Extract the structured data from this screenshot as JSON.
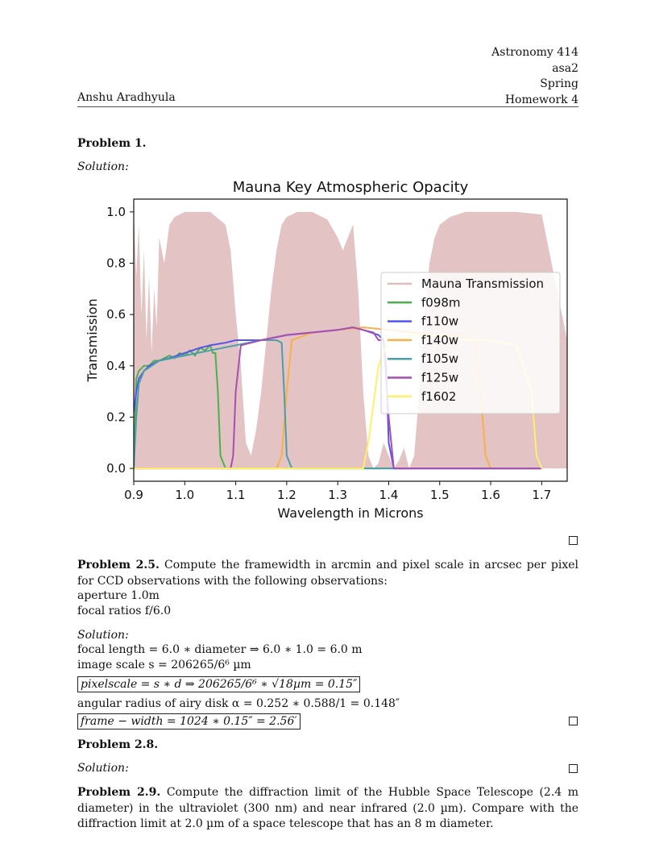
{
  "header": {
    "course": "Astronomy 414",
    "netid": "asa2",
    "term": "Spring",
    "author": "Anshu Aradhyula",
    "assignment": "Homework 4"
  },
  "problem1": {
    "title": "Problem 1.",
    "solution_label": "Solution:"
  },
  "chart_data": {
    "type": "line",
    "title": "Mauna Key Atmospheric Opacity",
    "xlabel": "Wavelength in Microns",
    "ylabel": "Transmission",
    "xlim": [
      0.9,
      1.75
    ],
    "ylim": [
      -0.05,
      1.05
    ],
    "xticks": [
      "0.9",
      "1.0",
      "1.1",
      "1.2",
      "1.3",
      "1.4",
      "1.5",
      "1.6",
      "1.7"
    ],
    "yticks": [
      "0.0",
      "0.2",
      "0.4",
      "0.6",
      "0.8",
      "1.0"
    ],
    "legend_position": "center-right",
    "series": [
      {
        "name": "Mauna Transmission",
        "color": "#e0bcbc",
        "x": [
          0.9,
          0.905,
          0.91,
          0.915,
          0.92,
          0.925,
          0.93,
          0.935,
          0.94,
          0.945,
          0.95,
          0.96,
          0.97,
          0.98,
          1.0,
          1.05,
          1.08,
          1.09,
          1.1,
          1.11,
          1.12,
          1.13,
          1.14,
          1.15,
          1.16,
          1.17,
          1.18,
          1.19,
          1.2,
          1.22,
          1.25,
          1.28,
          1.3,
          1.31,
          1.32,
          1.33,
          1.34,
          1.35,
          1.36,
          1.37,
          1.38,
          1.39,
          1.4,
          1.41,
          1.42,
          1.43,
          1.44,
          1.45,
          1.46,
          1.47,
          1.48,
          1.49,
          1.5,
          1.52,
          1.55,
          1.6,
          1.65,
          1.7,
          1.75
        ],
        "y": [
          1.0,
          0.75,
          0.95,
          0.6,
          0.85,
          0.5,
          0.75,
          0.45,
          0.7,
          0.55,
          0.9,
          0.8,
          0.95,
          0.98,
          1.0,
          1.0,
          0.95,
          0.85,
          0.6,
          0.4,
          0.1,
          0.05,
          0.15,
          0.3,
          0.5,
          0.7,
          0.85,
          0.95,
          0.98,
          1.0,
          1.0,
          0.97,
          0.9,
          0.85,
          0.9,
          0.95,
          0.7,
          0.3,
          0.05,
          0.0,
          0.02,
          0.1,
          0.05,
          0.0,
          0.03,
          0.08,
          0.0,
          0.05,
          0.3,
          0.6,
          0.8,
          0.9,
          0.95,
          0.98,
          1.0,
          1.0,
          1.0,
          0.99,
          0.5
        ]
      },
      {
        "name": "f098m",
        "color": "#4caf50",
        "x": [
          0.9,
          0.905,
          0.91,
          0.92,
          0.93,
          0.94,
          0.95,
          0.96,
          0.97,
          0.98,
          0.99,
          1.0,
          1.01,
          1.02,
          1.03,
          1.04,
          1.05,
          1.055,
          1.06,
          1.065,
          1.07,
          1.08,
          1.1,
          1.2,
          1.4,
          1.7
        ],
        "y": [
          0.0,
          0.35,
          0.38,
          0.4,
          0.4,
          0.42,
          0.42,
          0.43,
          0.44,
          0.43,
          0.45,
          0.44,
          0.46,
          0.44,
          0.47,
          0.46,
          0.48,
          0.45,
          0.45,
          0.3,
          0.05,
          0.0,
          0.0,
          0.0,
          0.0,
          0.0
        ]
      },
      {
        "name": "f110w",
        "color": "#5555ee",
        "x": [
          0.9,
          0.905,
          0.91,
          0.92,
          0.93,
          0.94,
          0.95,
          0.97,
          1.0,
          1.03,
          1.05,
          1.08,
          1.1,
          1.15,
          1.2,
          1.25,
          1.3,
          1.33,
          1.35,
          1.38,
          1.39,
          1.395,
          1.4,
          1.41,
          1.5,
          1.7
        ],
        "y": [
          0.22,
          0.3,
          0.35,
          0.38,
          0.4,
          0.41,
          0.42,
          0.43,
          0.45,
          0.47,
          0.48,
          0.49,
          0.5,
          0.5,
          0.52,
          0.53,
          0.54,
          0.55,
          0.54,
          0.52,
          0.5,
          0.4,
          0.1,
          0.0,
          0.0,
          0.0
        ]
      },
      {
        "name": "f140w",
        "color": "#f9b04a",
        "x": [
          0.9,
          1.18,
          1.19,
          1.2,
          1.21,
          1.25,
          1.3,
          1.35,
          1.4,
          1.45,
          1.5,
          1.55,
          1.57,
          1.58,
          1.59,
          1.6,
          1.7
        ],
        "y": [
          0.0,
          0.0,
          0.05,
          0.3,
          0.5,
          0.53,
          0.54,
          0.55,
          0.54,
          0.53,
          0.52,
          0.52,
          0.5,
          0.3,
          0.05,
          0.0,
          0.0
        ]
      },
      {
        "name": "f105w",
        "color": "#4a9fa8",
        "x": [
          0.9,
          0.905,
          0.91,
          0.92,
          0.95,
          1.0,
          1.05,
          1.1,
          1.15,
          1.18,
          1.19,
          1.195,
          1.2,
          1.21,
          1.3,
          1.7
        ],
        "y": [
          0.0,
          0.2,
          0.33,
          0.38,
          0.42,
          0.44,
          0.46,
          0.48,
          0.5,
          0.5,
          0.49,
          0.3,
          0.05,
          0.0,
          0.0,
          0.0
        ]
      },
      {
        "name": "f125w",
        "color": "#a64fb3",
        "x": [
          0.9,
          1.09,
          1.095,
          1.1,
          1.11,
          1.15,
          1.2,
          1.25,
          1.3,
          1.33,
          1.35,
          1.37,
          1.38,
          1.39,
          1.4,
          1.41,
          1.7
        ],
        "y": [
          0.0,
          0.0,
          0.05,
          0.3,
          0.48,
          0.5,
          0.52,
          0.53,
          0.54,
          0.55,
          0.54,
          0.53,
          0.5,
          0.5,
          0.2,
          0.0,
          0.0
        ]
      },
      {
        "name": "f1602",
        "color": "#fff06a",
        "x": [
          0.9,
          1.2,
          1.3,
          1.35,
          1.36,
          1.38,
          1.4,
          1.45,
          1.5,
          1.55,
          1.6,
          1.65,
          1.68,
          1.69,
          1.7
        ],
        "y": [
          0.0,
          0.0,
          0.0,
          0.0,
          0.1,
          0.4,
          0.5,
          0.52,
          0.52,
          0.5,
          0.5,
          0.48,
          0.3,
          0.05,
          0.0
        ]
      }
    ]
  },
  "problem25": {
    "title": "Problem 2.5.",
    "text": "Compute the framewidth in arcmin and pixel scale in arcsec per pixel for CCD observations with the following observations:",
    "line1": "aperture 1.0m",
    "line2": "focal ratios f/6.0",
    "solution_label": "Solution:",
    "eq1": "focal length = 6.0 ∗ diameter ⇒ 6.0 ∗ 1.0 = 6.0 m",
    "eq2": "image scale s = 206265/6⁶ µm",
    "eq3": "pixelscale = s ∗ d ⇒ 206265/6⁶ ∗ √18µm = 0.15″",
    "eq4": "angular radius of airy disk α = 0.252 ∗ 0.588/1 = 0.148″",
    "eq5": "frame − width = 1024 ∗ 0.15″ = 2.56′"
  },
  "problem28": {
    "title": "Problem 2.8.",
    "solution_label": "Solution:"
  },
  "problem29": {
    "title": "Problem 2.9.",
    "text": "Compute the diffraction limit of the Hubble Space Telescope (2.4 m diameter) in the ultraviolet (300 nm) and near infrared (2.0 µm). Compare with the diffraction limit at 2.0 µm of a space telescope that has an 8 m diameter."
  }
}
